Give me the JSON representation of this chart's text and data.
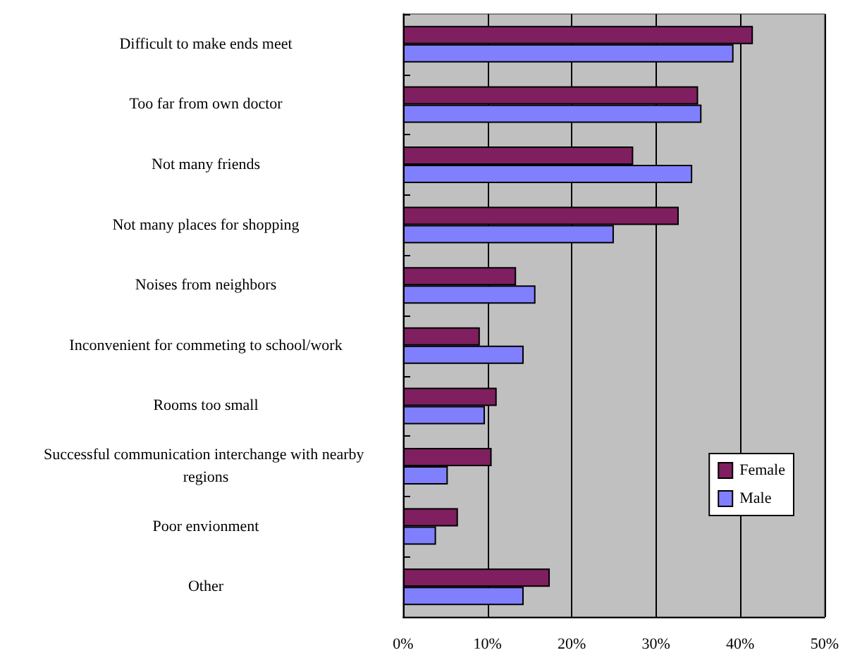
{
  "chart_data": {
    "type": "bar",
    "orientation": "horizontal",
    "categories": [
      "Difficult to make ends meet",
      "Too far from own doctor",
      "Not many friends",
      "Not many places for shopping",
      "Noises from neighbors",
      "Inconvenient for commeting to school/work",
      "Rooms too small",
      "Successful communication interchange with nearby regions",
      "Poor envionment",
      "Other"
    ],
    "series": [
      {
        "name": "Female",
        "color": "#7f1f5f",
        "values": [
          41.5,
          35.0,
          27.3,
          32.7,
          13.4,
          9.1,
          11.1,
          10.5,
          6.5,
          17.4
        ]
      },
      {
        "name": "Male",
        "color": "#8080ff",
        "values": [
          39.2,
          35.4,
          34.3,
          25.0,
          15.7,
          14.3,
          9.7,
          5.3,
          3.9,
          14.3
        ]
      }
    ],
    "xlim": [
      0,
      50
    ],
    "xticks": [
      {
        "value": 0,
        "label": "0%"
      },
      {
        "value": 10,
        "label": "10%"
      },
      {
        "value": 20,
        "label": "20%"
      },
      {
        "value": 30,
        "label": "30%"
      },
      {
        "value": 40,
        "label": "40%"
      },
      {
        "value": 50,
        "label": "50%"
      }
    ],
    "grid": "x",
    "legend": "right"
  }
}
